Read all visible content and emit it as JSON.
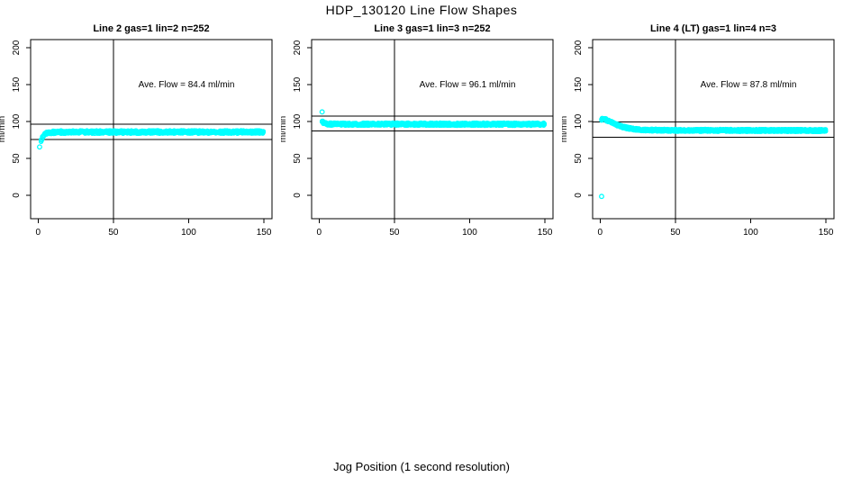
{
  "figure": {
    "title": "HDP_130120  Line Flow Shapes",
    "xlabel": "Jog Position (1 second resolution)",
    "background": "#FFFFFF",
    "marker_color": "#00FFFF",
    "axis_color": "#000000"
  },
  "chart_data": {
    "type": "scatter",
    "x_ticks": [
      0,
      50,
      100,
      150
    ],
    "y_ticks": [
      0,
      50,
      100,
      150,
      200
    ],
    "ylabel": "ml/min",
    "xlabel": "Jog Position (1 second resolution)",
    "x_range_shown": [
      0,
      150
    ],
    "y_range_shown": [
      0,
      200
    ],
    "grid": false,
    "panels": [
      {
        "title": "Line 2 gas=1 lin=2 n=252",
        "ave_flow": 84.4,
        "annotation": "Ave. Flow =  84.4  ml/min",
        "vline_x": 50,
        "ref_lines_y": [
          96.5,
          75.5
        ],
        "outliers": [
          [
            1,
            65.5
          ]
        ],
        "profile": [
          [
            2,
            74.5
          ],
          [
            3,
            79.5
          ],
          [
            4,
            82.0
          ],
          [
            5,
            83.5
          ],
          [
            6,
            84.3
          ],
          [
            7,
            84.8
          ],
          [
            8,
            85.2
          ],
          [
            10,
            85.5
          ],
          [
            15,
            85.7
          ],
          [
            150,
            85.8
          ]
        ],
        "jitter": 2.0,
        "passes": 2,
        "seed": 101
      },
      {
        "title": "Line 3 gas=1 lin=3 n=252",
        "ave_flow": 96.1,
        "annotation": "Ave. Flow =  96.1  ml/min",
        "vline_x": 50,
        "ref_lines_y": [
          107.5,
          87.0
        ],
        "outliers": [
          [
            2,
            113
          ]
        ],
        "profile": [
          [
            2,
            101.0
          ],
          [
            3,
            98.0
          ],
          [
            4,
            97.0
          ],
          [
            5,
            96.6
          ],
          [
            8,
            96.4
          ],
          [
            150,
            96.3
          ]
        ],
        "jitter": 1.8,
        "passes": 2,
        "seed": 202
      },
      {
        "title": "Line 4 (LT) gas=1 lin=4 n=3",
        "ave_flow": 87.8,
        "annotation": "Ave. Flow =  87.8  ml/min",
        "vline_x": 50,
        "ref_lines_y": [
          99.5,
          78.5
        ],
        "outliers": [
          [
            1,
            -1.5
          ]
        ],
        "profile": [
          [
            1,
            103.0
          ],
          [
            2,
            103.8
          ],
          [
            3,
            103.2
          ],
          [
            4,
            102.3
          ],
          [
            5,
            101.3
          ],
          [
            6,
            100.3
          ],
          [
            8,
            98.2
          ],
          [
            10,
            96.3
          ],
          [
            12,
            94.8
          ],
          [
            15,
            92.8
          ],
          [
            18,
            91.2
          ],
          [
            22,
            89.8
          ],
          [
            26,
            89.0
          ],
          [
            30,
            88.6
          ],
          [
            40,
            88.2
          ],
          [
            60,
            88.0
          ],
          [
            150,
            87.8
          ]
        ],
        "jitter": 1.6,
        "passes": 3,
        "seed": 303
      }
    ]
  }
}
